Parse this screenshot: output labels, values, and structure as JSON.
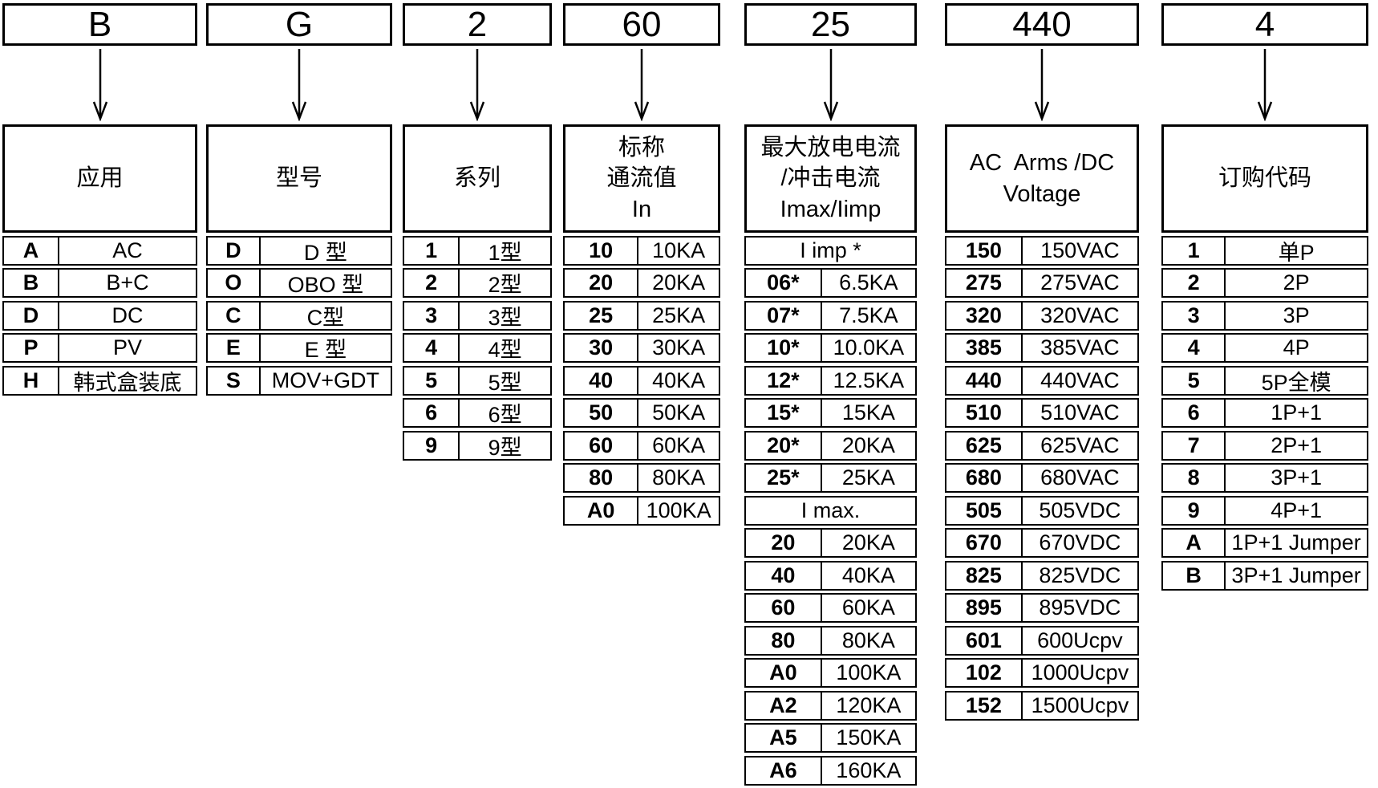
{
  "diagram_title": "ordering-code-breakdown",
  "colors": {
    "ink": "#000000",
    "background": "#ffffff"
  },
  "example_code": [
    "B",
    "G",
    "2",
    "60",
    "25",
    "440",
    "4"
  ],
  "columns": [
    {
      "code": "B",
      "header_lines": [
        "应用"
      ],
      "rows": [
        {
          "key": "A",
          "value": "AC"
        },
        {
          "key": "B",
          "value": "B+C"
        },
        {
          "key": "D",
          "value": "DC"
        },
        {
          "key": "P",
          "value": "PV"
        },
        {
          "key": "H",
          "value": "韩式盒装底"
        }
      ]
    },
    {
      "code": "G",
      "header_lines": [
        "型号"
      ],
      "rows": [
        {
          "key": "D",
          "value": "D 型"
        },
        {
          "key": "O",
          "value": "OBO 型"
        },
        {
          "key": "C",
          "value": "C型"
        },
        {
          "key": "E",
          "value": "E 型"
        },
        {
          "key": "S",
          "value": "MOV+GDT"
        }
      ]
    },
    {
      "code": "2",
      "header_lines": [
        "系列"
      ],
      "rows": [
        {
          "key": "1",
          "value": "1型"
        },
        {
          "key": "2",
          "value": "2型"
        },
        {
          "key": "3",
          "value": "3型"
        },
        {
          "key": "4",
          "value": "4型"
        },
        {
          "key": "5",
          "value": "5型"
        },
        {
          "key": "6",
          "value": "6型"
        },
        {
          "key": "9",
          "value": "9型"
        }
      ]
    },
    {
      "code": "60",
      "header_lines": [
        "标称",
        "通流值",
        "In"
      ],
      "rows": [
        {
          "key": "10",
          "value": "10KA"
        },
        {
          "key": "20",
          "value": "20KA"
        },
        {
          "key": "25",
          "value": "25KA"
        },
        {
          "key": "30",
          "value": "30KA"
        },
        {
          "key": "40",
          "value": "40KA"
        },
        {
          "key": "50",
          "value": "50KA"
        },
        {
          "key": "60",
          "value": "60KA"
        },
        {
          "key": "80",
          "value": "80KA"
        },
        {
          "key": "A0",
          "value": "100KA"
        }
      ]
    },
    {
      "code": "25",
      "header_lines": [
        "最大放电电流",
        "/冲击电流",
        "Imax/Iimp"
      ],
      "rows": [
        {
          "merged": "I imp *"
        },
        {
          "key": "06*",
          "value": "6.5KA"
        },
        {
          "key": "07*",
          "value": "7.5KA"
        },
        {
          "key": "10*",
          "value": "10.0KA"
        },
        {
          "key": "12*",
          "value": "12.5KA"
        },
        {
          "key": "15*",
          "value": "15KA"
        },
        {
          "key": "20*",
          "value": "20KA"
        },
        {
          "key": "25*",
          "value": "25KA"
        },
        {
          "merged": "I max."
        },
        {
          "key": "20",
          "value": "20KA"
        },
        {
          "key": "40",
          "value": "40KA"
        },
        {
          "key": "60",
          "value": "60KA"
        },
        {
          "key": "80",
          "value": "80KA"
        },
        {
          "key": "A0",
          "value": "100KA"
        },
        {
          "key": "A2",
          "value": "120KA"
        },
        {
          "key": "A5",
          "value": "150KA"
        },
        {
          "key": "A6",
          "value": "160KA"
        }
      ]
    },
    {
      "code": "440",
      "header_lines": [
        "AC  Arms /DC",
        "Voltage"
      ],
      "rows": [
        {
          "key": "150",
          "value": "150VAC"
        },
        {
          "key": "275",
          "value": "275VAC"
        },
        {
          "key": "320",
          "value": "320VAC"
        },
        {
          "key": "385",
          "value": "385VAC"
        },
        {
          "key": "440",
          "value": "440VAC"
        },
        {
          "key": "510",
          "value": "510VAC"
        },
        {
          "key": "625",
          "value": "625VAC"
        },
        {
          "key": "680",
          "value": "680VAC"
        },
        {
          "key": "505",
          "value": "505VDC"
        },
        {
          "key": "670",
          "value": "670VDC"
        },
        {
          "key": "825",
          "value": "825VDC"
        },
        {
          "key": "895",
          "value": "895VDC"
        },
        {
          "key": "601",
          "value": "600Ucpv"
        },
        {
          "key": "102",
          "value": "1000Ucpv"
        },
        {
          "key": "152",
          "value": "1500Ucpv"
        }
      ]
    },
    {
      "code": "4",
      "header_lines": [
        "订购代码"
      ],
      "rows": [
        {
          "key": "1",
          "value": "单P"
        },
        {
          "key": "2",
          "value": "2P"
        },
        {
          "key": "3",
          "value": "3P"
        },
        {
          "key": "4",
          "value": "4P"
        },
        {
          "key": "5",
          "value": "5P全模"
        },
        {
          "key": "6",
          "value": "1P+1"
        },
        {
          "key": "7",
          "value": "2P+1"
        },
        {
          "key": "8",
          "value": "3P+1"
        },
        {
          "key": "9",
          "value": "4P+1"
        },
        {
          "key": "A",
          "value": "1P+1 Jumper"
        },
        {
          "key": "B",
          "value": "3P+1 Jumper"
        }
      ]
    }
  ]
}
